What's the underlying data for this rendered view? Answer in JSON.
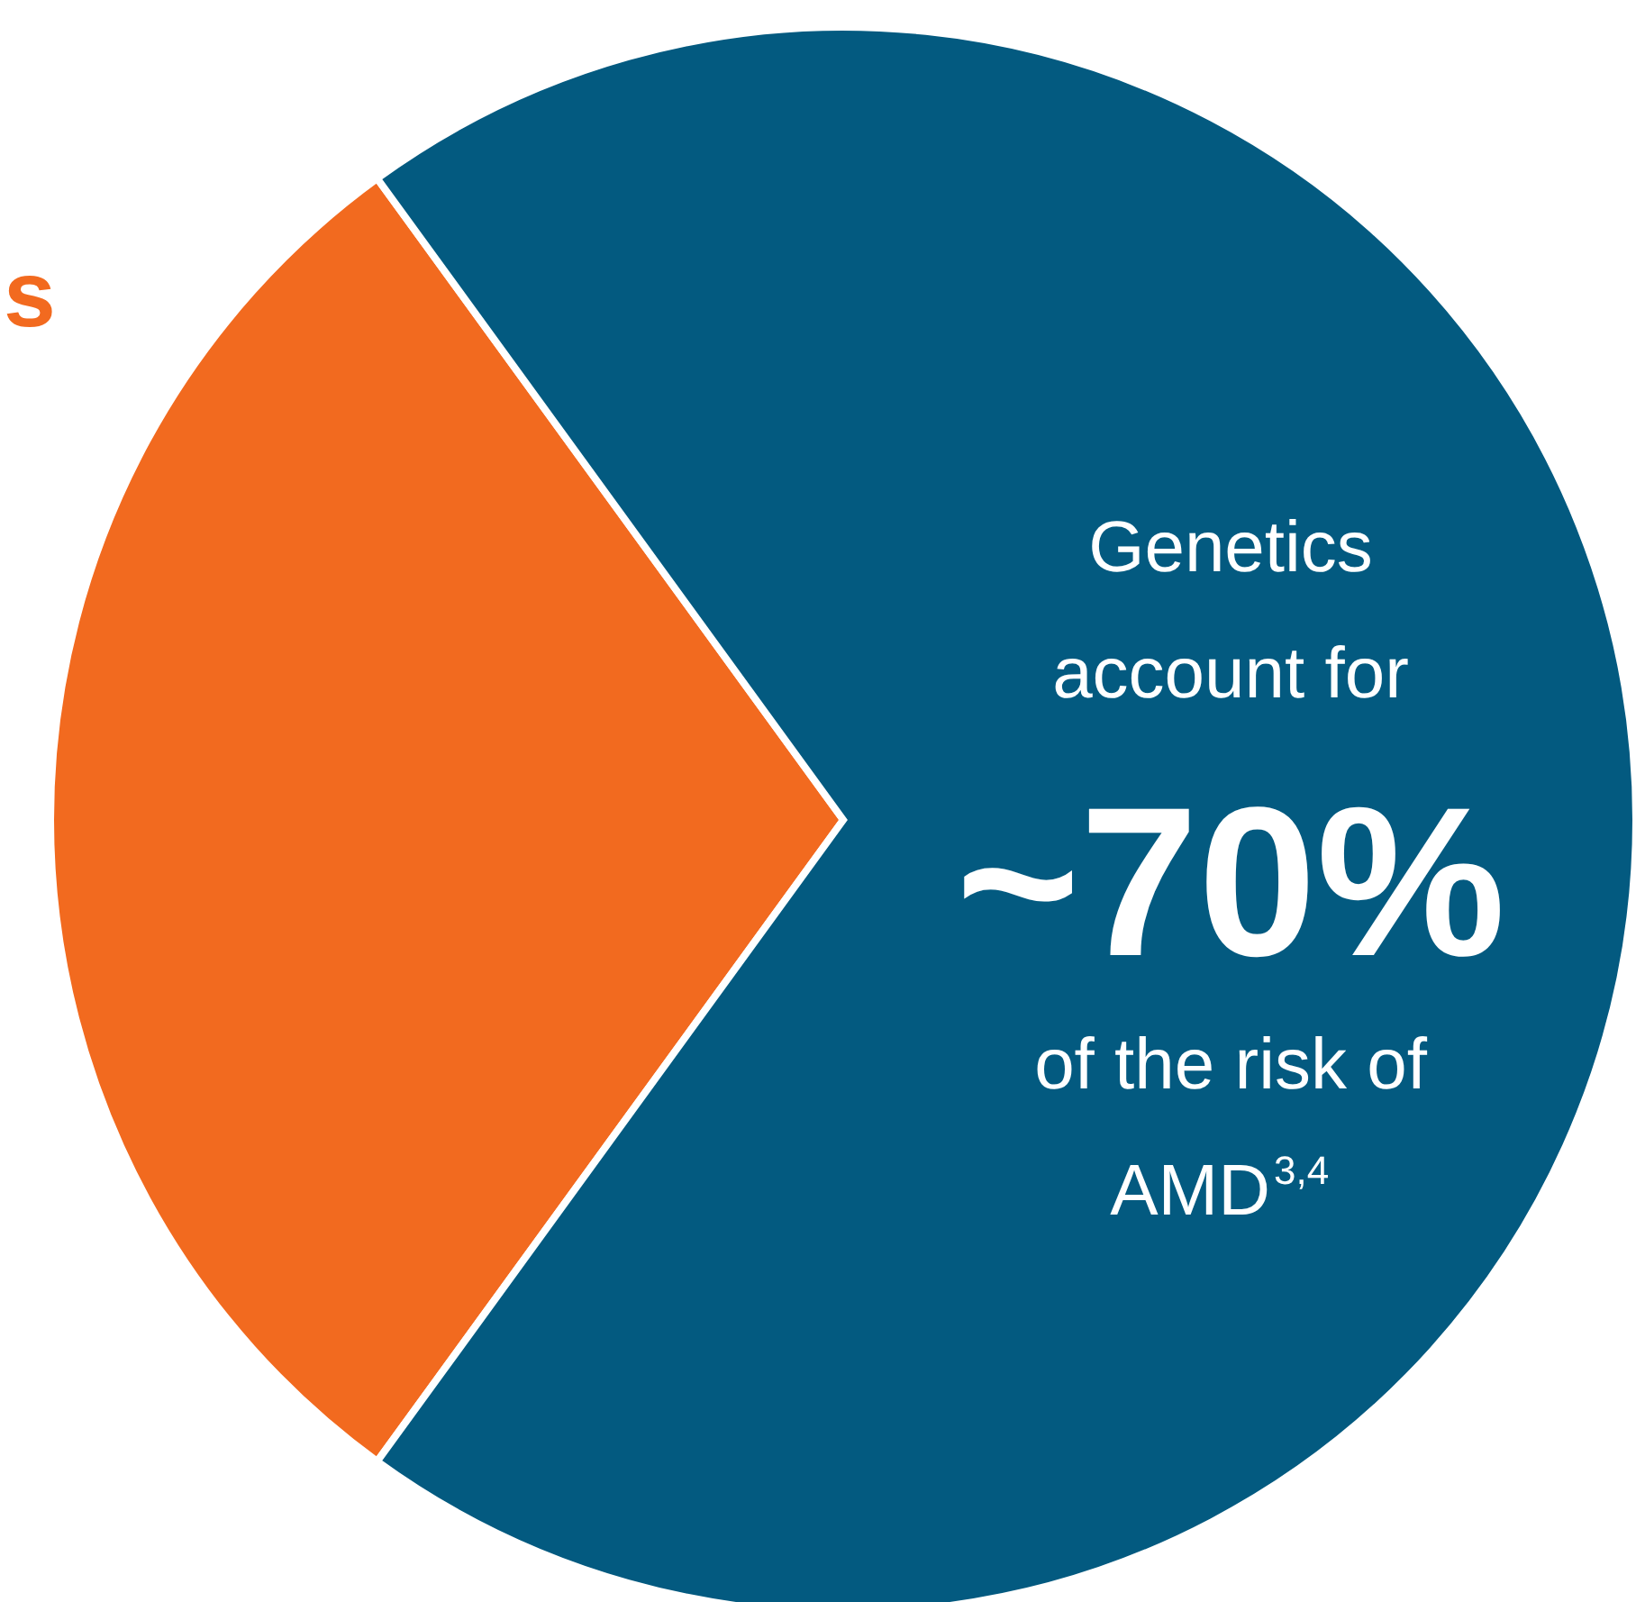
{
  "chart_data": {
    "type": "pie",
    "categories": [
      null,
      null
    ],
    "values": [
      30,
      70
    ],
    "colors": [
      "#f26a1f",
      "#035a80"
    ],
    "value_labels": [
      null,
      "~70%"
    ],
    "annotations": [
      "s",
      "Genetics",
      "account for",
      "of the risk of",
      "AMD$^{3,4}$"
    ]
  }
}
